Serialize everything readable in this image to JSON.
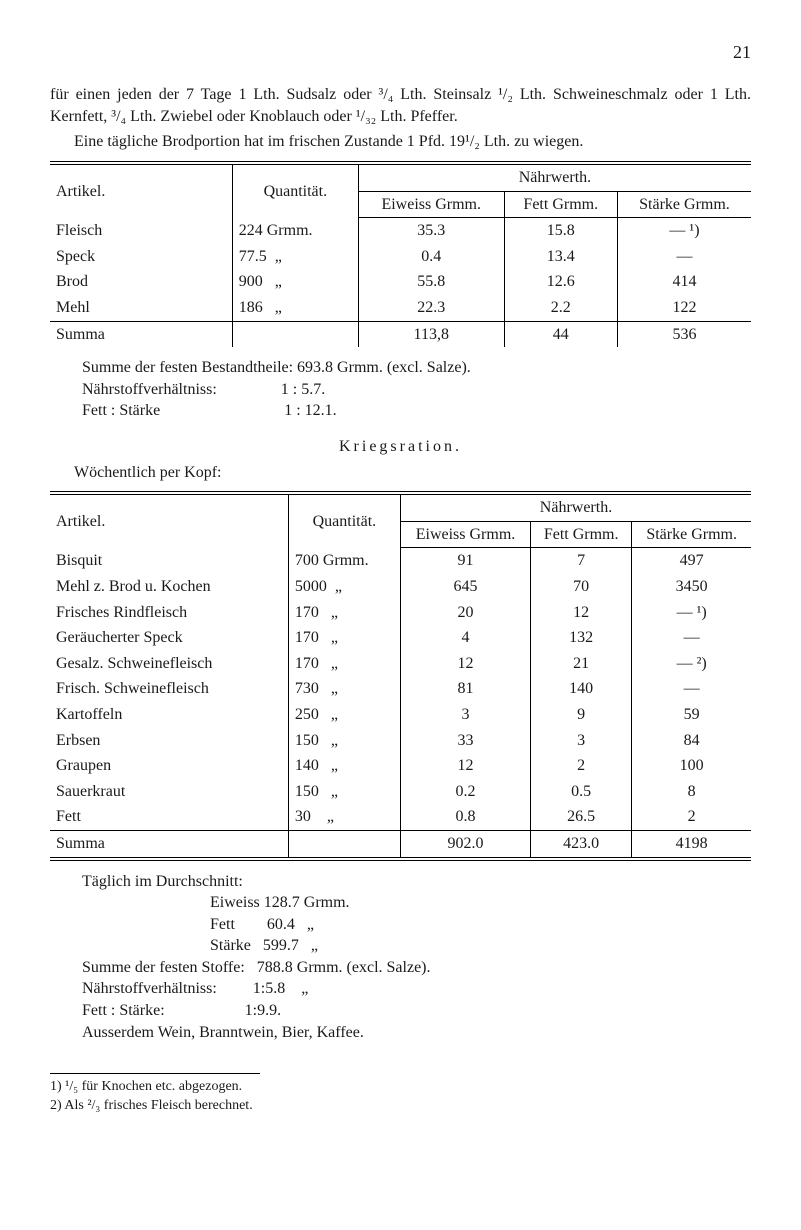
{
  "page_number": "21",
  "intro": {
    "p1": "für einen jeden der 7 Tage 1 Lth. Sudsalz oder ³/₄ Lth. Steinsalz ¹/₂ Lth. Schweineschmalz oder 1 Lth. Kernfett, ³/₄ Lth. Zwiebel oder Knoblauch oder ¹/₃₂ Lth. Pfeffer.",
    "p2": "Eine tägliche Brodportion hat im frischen Zustande 1 Pfd. 19¹/₂ Lth. zu wiegen."
  },
  "table1": {
    "headers": {
      "artikel": "Artikel.",
      "quant": "Quantität.",
      "nahr": "Nährwerth.",
      "eiweiss": "Eiweiss Grmm.",
      "fett": "Fett Grmm.",
      "starke": "Stärke Grmm."
    },
    "rows": [
      {
        "a": "Fleisch",
        "q": "224 Grmm.",
        "e": "35.3",
        "f": "15.8",
        "s": "— ¹)"
      },
      {
        "a": "Speck",
        "q": "77.5  „",
        "e": "0.4",
        "f": "13.4",
        "s": "—"
      },
      {
        "a": "Brod",
        "q": "900   „",
        "e": "55.8",
        "f": "12.6",
        "s": "414"
      },
      {
        "a": "Mehl",
        "q": "186   „",
        "e": "22.3",
        "f": "2.2",
        "s": "122"
      }
    ],
    "summa": {
      "a": "Summa",
      "q": "",
      "e": "113,8",
      "f": "44",
      "s": "536"
    }
  },
  "post1": {
    "l1": "Summe der festen Bestandtheile: 693.8 Grmm. (excl. Salze).",
    "l2": "Nährstoffverhältniss:                1 : 5.7.",
    "l3": "Fett : Stärke                               1 : 12.1."
  },
  "section2_title": "Kriegsration.",
  "section2_sub": "Wöchentlich per Kopf:",
  "table2": {
    "headers": {
      "artikel": "Artikel.",
      "quant": "Quantität.",
      "nahr": "Nährwerth.",
      "eiweiss": "Eiweiss Grmm.",
      "fett": "Fett Grmm.",
      "starke": "Stärke Grmm."
    },
    "rows": [
      {
        "a": "Bisquit",
        "q": "700 Grmm.",
        "e": "91",
        "f": "7",
        "s": "497"
      },
      {
        "a": "Mehl z. Brod u. Kochen",
        "q": "5000  „",
        "e": "645",
        "f": "70",
        "s": "3450"
      },
      {
        "a": "Frisches Rindfleisch",
        "q": "170   „",
        "e": "20",
        "f": "12",
        "s": "— ¹)"
      },
      {
        "a": "Geräucherter Speck",
        "q": "170   „",
        "e": "4",
        "f": "132",
        "s": "—"
      },
      {
        "a": "Gesalz. Schweinefleisch",
        "q": "170   „",
        "e": "12",
        "f": "21",
        "s": "— ²)"
      },
      {
        "a": "Frisch. Schweinefleisch",
        "q": "730   „",
        "e": "81",
        "f": "140",
        "s": "—"
      },
      {
        "a": "Kartoffeln",
        "q": "250   „",
        "e": "3",
        "f": "9",
        "s": "59"
      },
      {
        "a": "Erbsen",
        "q": "150   „",
        "e": "33",
        "f": "3",
        "s": "84"
      },
      {
        "a": "Graupen",
        "q": "140   „",
        "e": "12",
        "f": "2",
        "s": "100"
      },
      {
        "a": "Sauerkraut",
        "q": "150   „",
        "e": "0.2",
        "f": "0.5",
        "s": "8"
      },
      {
        "a": "Fett",
        "q": "30    „",
        "e": "0.8",
        "f": "26.5",
        "s": "2"
      }
    ],
    "summa": {
      "a": "Summa",
      "q": "",
      "e": "902.0",
      "f": "423.0",
      "s": "4198"
    }
  },
  "post2": {
    "l1": "Täglich im Durchschnitt:",
    "l2": "Eiweiss 128.7 Grmm.",
    "l3": "Fett        60.4   „",
    "l4": "Stärke   599.7   „",
    "l5": "Summe der festen Stoffe:   788.8 Grmm. (excl. Salze).",
    "l6": "Nährstoffverhältniss:         1:5.8    „",
    "l7": "Fett : Stärke:                    1:9.9.",
    "l8": "Ausserdem Wein, Branntwein, Bier, Kaffee."
  },
  "footnotes": {
    "f1": "1) ¹/₅ für Knochen etc. abgezogen.",
    "f2": "2) Als ²/₃ frisches Fleisch berechnet."
  }
}
